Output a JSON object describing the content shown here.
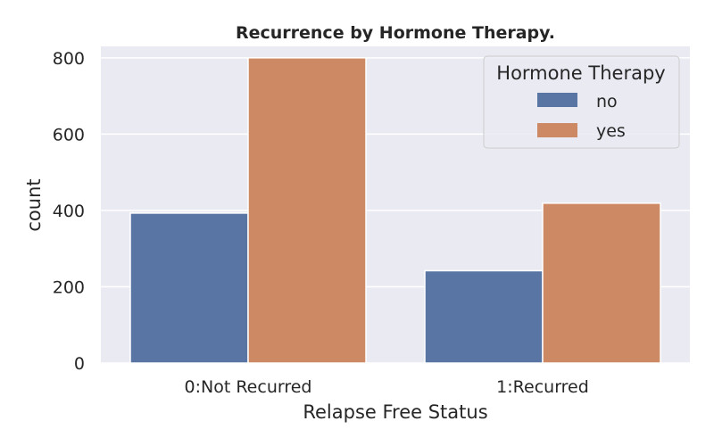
{
  "chart_data": {
    "type": "bar",
    "title": "Recurrence by Hormone Therapy.",
    "xlabel": "Relapse Free Status",
    "ylabel": "count",
    "categories": [
      "0:Not Recurred",
      "1:Recurred"
    ],
    "series": [
      {
        "name": "no",
        "values": [
          393,
          242
        ],
        "color": "#5875a4"
      },
      {
        "name": "yes",
        "values": [
          800,
          419
        ],
        "color": "#cc8963"
      }
    ],
    "ylim": [
      0,
      830
    ],
    "yticks": [
      0,
      200,
      400,
      600,
      800
    ],
    "yticks_labels": [
      "0",
      "200",
      "400",
      "600",
      "800"
    ],
    "legend": {
      "title": "Hormone Therapy",
      "placement": "top-right"
    },
    "grid": true,
    "background": "#eaeaf2"
  }
}
